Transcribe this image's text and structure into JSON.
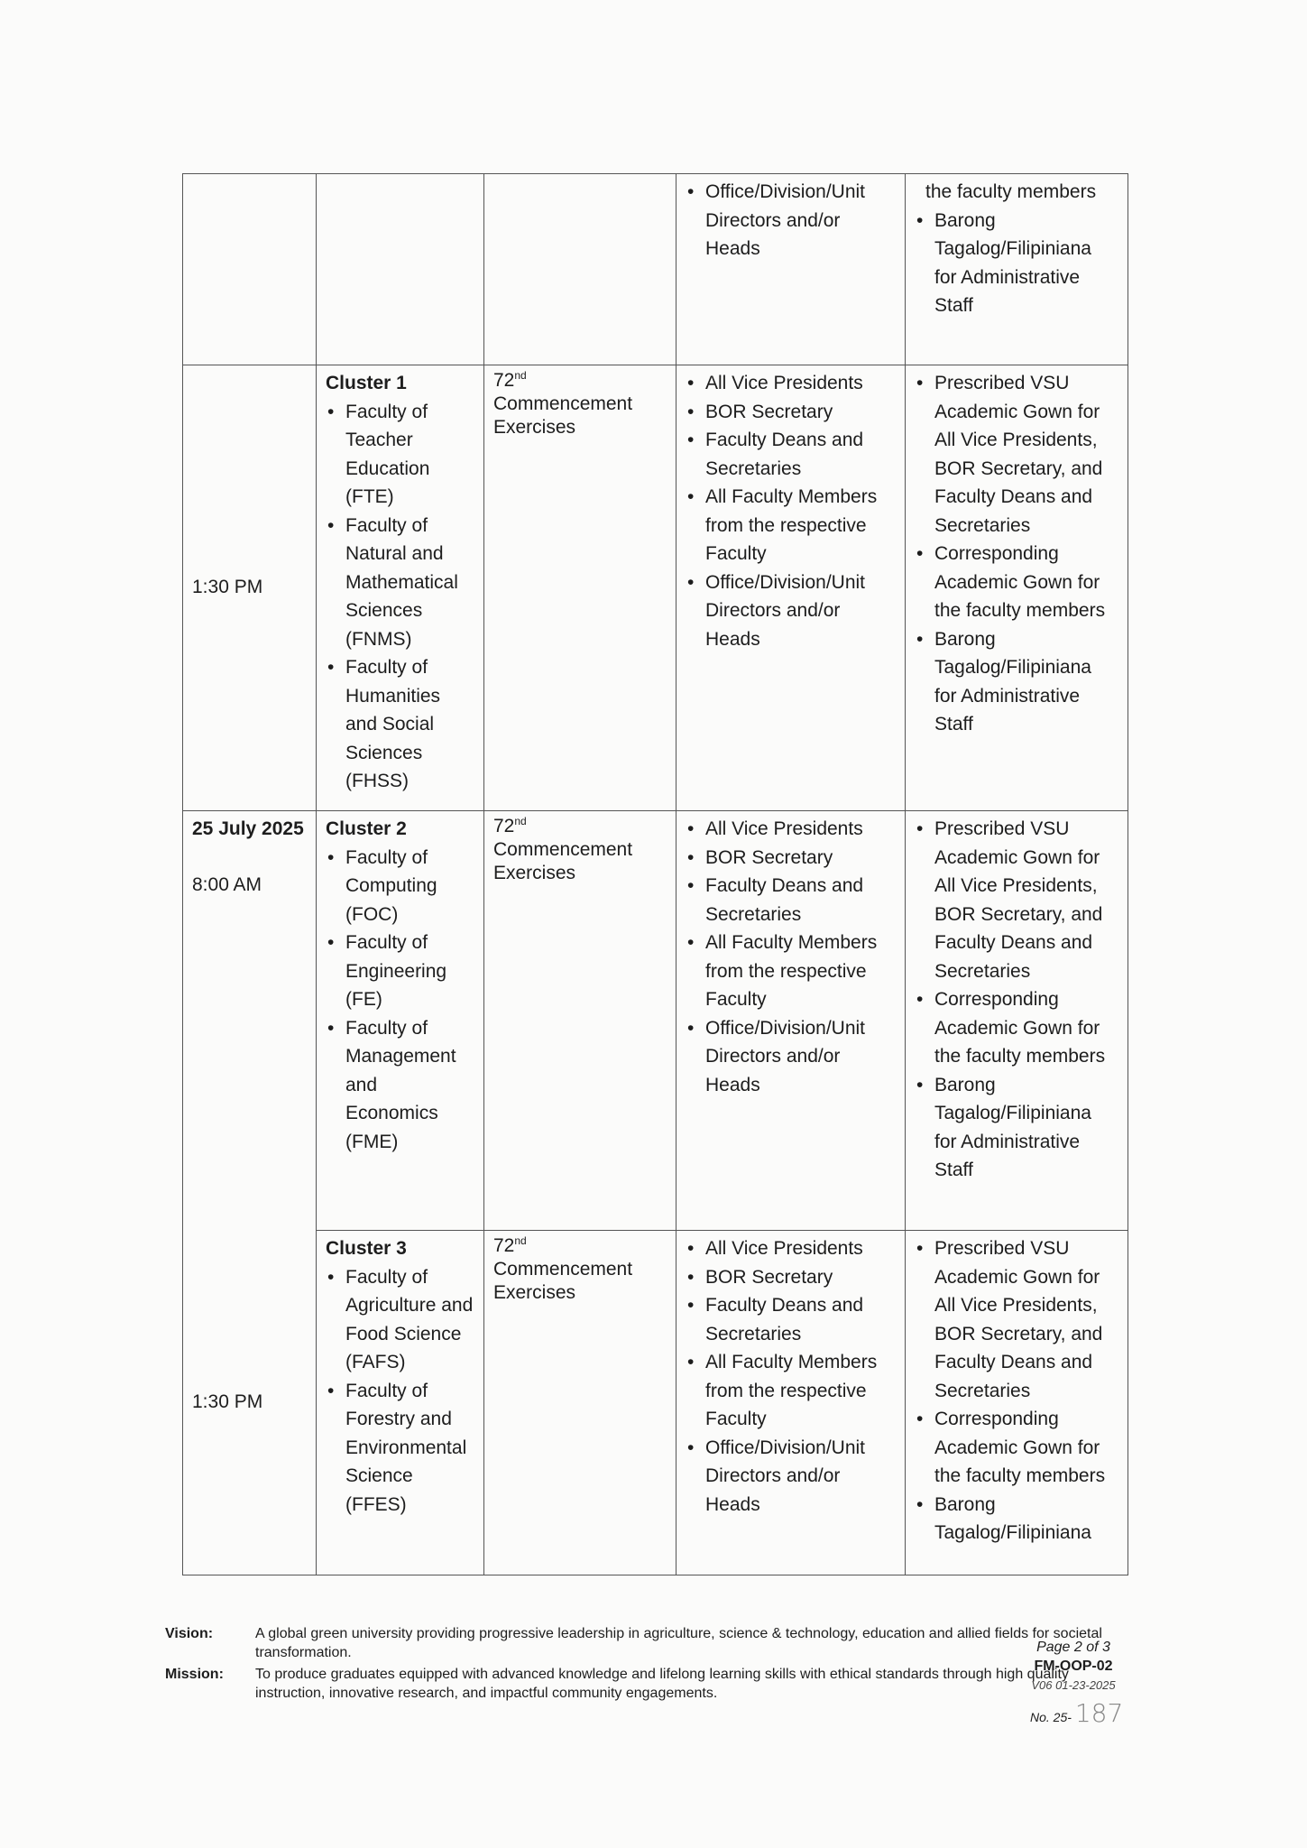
{
  "rows": [
    {
      "time": [],
      "cluster": null,
      "event": "",
      "attendees": [
        "Office/Division/Unit Directors and/or Heads"
      ],
      "attire_continued": "the faculty members",
      "attire": [
        "Barong Tagalog/Filipiniana for Administrative Staff"
      ]
    },
    {
      "date": "",
      "time": "1:30 PM",
      "cluster": "Cluster 1",
      "faculties": [
        "Faculty of Teacher Education (FTE)",
        "Faculty of Natural and Mathematical Sciences (FNMS)",
        "Faculty of Humanities and Social Sciences (FHSS)"
      ],
      "event_num": "72",
      "event_sup": "nd",
      "event": "Commencement Exercises",
      "attendees": [
        "All Vice Presidents",
        "BOR Secretary",
        "Faculty Deans and Secretaries",
        "All Faculty Members from the respective Faculty",
        "Office/Division/Unit Directors and/or Heads"
      ],
      "attire": [
        "Prescribed VSU Academic Gown for All Vice Presidents, BOR Secretary, and Faculty Deans and Secretaries",
        "Corresponding Academic Gown for the faculty members",
        "Barong Tagalog/Filipiniana for Administrative Staff"
      ]
    },
    {
      "date": "25 July 2025",
      "time": "8:00 AM",
      "cluster": "Cluster 2",
      "faculties": [
        "Faculty of Computing (FOC)",
        "Faculty of Engineering (FE)",
        "Faculty of Management and Economics (FME)"
      ],
      "event_num": "72",
      "event_sup": "nd",
      "event": "Commencement Exercises",
      "attendees": [
        "All Vice Presidents",
        "BOR Secretary",
        "Faculty Deans and Secretaries",
        "All Faculty Members from the respective Faculty",
        "Office/Division/Unit Directors and/or Heads"
      ],
      "attire": [
        "Prescribed VSU Academic Gown for All Vice Presidents, BOR Secretary, and Faculty Deans and Secretaries",
        "Corresponding Academic Gown for the faculty members",
        "Barong Tagalog/Filipiniana for Administrative Staff"
      ]
    },
    {
      "time": "1:30 PM",
      "cluster": "Cluster 3",
      "faculties": [
        "Faculty of Agriculture and Food Science (FAFS)",
        "Faculty of Forestry and Environmental Science (FFES)"
      ],
      "event_num": "72",
      "event_sup": "nd",
      "event": "Commencement Exercises",
      "attendees": [
        "All Vice Presidents",
        "BOR Secretary",
        "Faculty Deans and Secretaries",
        "All Faculty Members from the respective Faculty",
        "Office/Division/Unit Directors and/or Heads"
      ],
      "attire": [
        "Prescribed VSU Academic Gown for All Vice Presidents, BOR Secretary, and Faculty Deans and Secretaries",
        "Corresponding Academic Gown for the faculty members",
        "Barong Tagalog/Filipiniana"
      ]
    }
  ],
  "footer": {
    "vision_label": "Vision:",
    "vision": "A global green university providing progressive leadership in agriculture, science & technology, education and allied fields for societal transformation.",
    "mission_label": "Mission:",
    "mission": "To produce graduates equipped with advanced knowledge and lifelong learning skills with ethical standards through high quality instruction, innovative research, and impactful community engagements.",
    "page": "Page 2 of 3",
    "form_code": "FM-OOP-02",
    "version": "V06 01-23-2025",
    "no_label": "No. 25-",
    "no_handwritten": "187"
  }
}
